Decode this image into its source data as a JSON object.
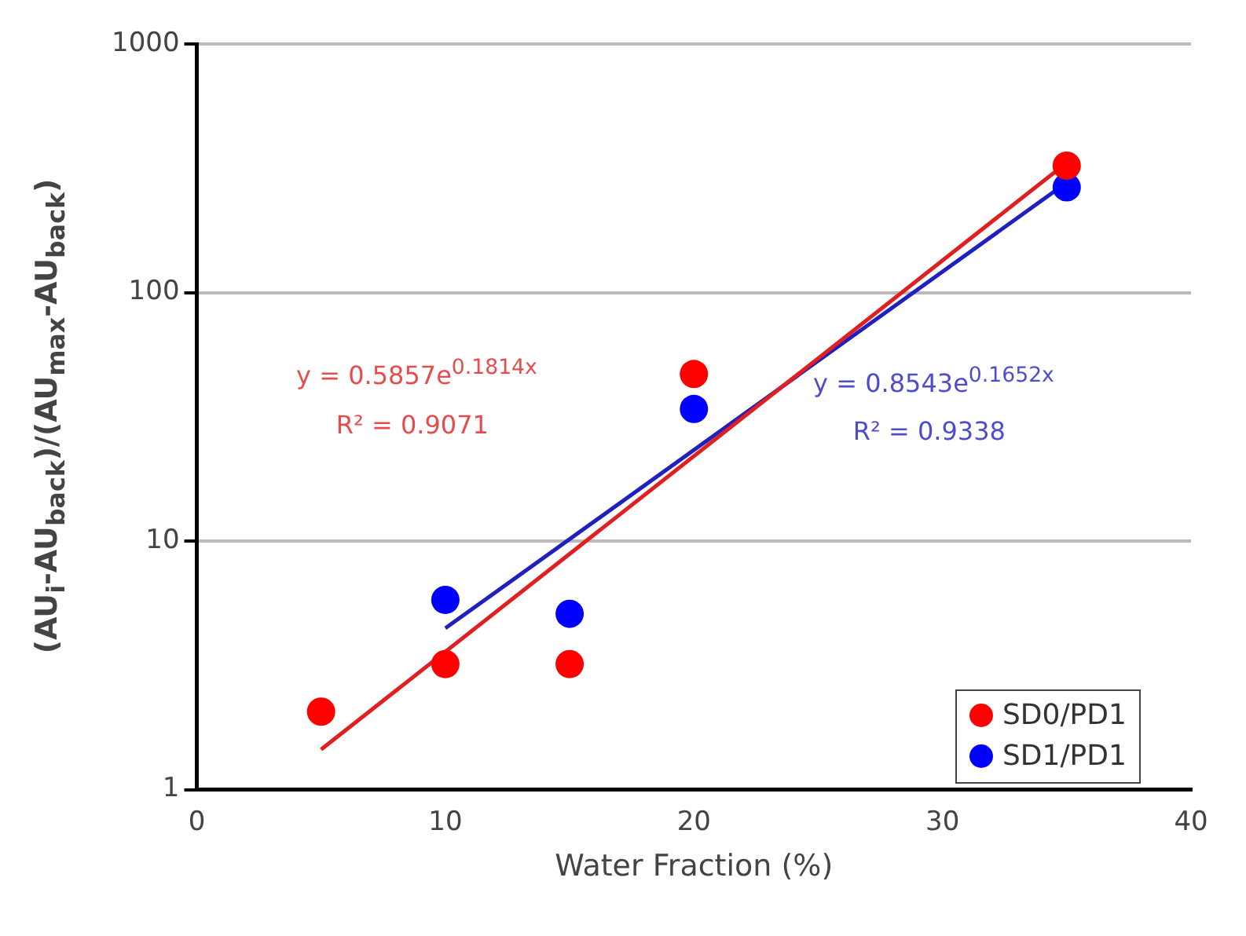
{
  "chart_data": {
    "type": "scatter",
    "xlabel": "Water Fraction (%)",
    "ylabel": "(AU$_{i}$-AU$_{back}$)/(AU$_{max}$-AU$_{back}$)",
    "xlim": [
      0,
      40
    ],
    "xticks": [
      0,
      10,
      20,
      30,
      40
    ],
    "ylim": [
      1,
      1000
    ],
    "yticks": [
      1,
      10,
      100,
      1000
    ],
    "log": "y",
    "grid": "y",
    "legend": "bottom right",
    "marker": "circle",
    "series": [
      {
        "name": "SD0/PD1",
        "color": "#ff0000",
        "x": [
          5,
          10,
          15,
          20,
          35
        ],
        "values": [
          2.06,
          3.2,
          3.2,
          47,
          324
        ]
      },
      {
        "name": "SD1/PD1",
        "color": "#0000ff",
        "x": [
          10,
          15,
          20,
          35
        ],
        "values": [
          5.8,
          5.1,
          34,
          265
        ]
      },
      {
        "type": "line",
        "color": "#e02020",
        "line_style": "solid",
        "marker": "none",
        "x": [
          5,
          35
        ],
        "values": [
          1.45,
          333
        ]
      },
      {
        "type": "line",
        "color": "#2020c0",
        "line_style": "solid",
        "marker": "none",
        "x": [
          10,
          35
        ],
        "values": [
          4.46,
          277
        ]
      }
    ],
    "annotations": [
      "y = 0.5857e$^{0.1814x}$",
      "R² = 0.9071",
      "y = 0.8543e$^{0.1652x}$",
      "R² = 0.9338"
    ]
  }
}
